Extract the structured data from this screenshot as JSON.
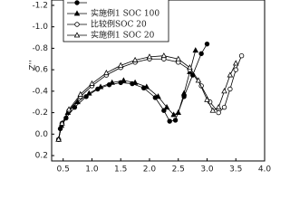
{
  "chart_data": {
    "type": "scatter-line",
    "y_label": "Z''",
    "xlim": [
      0.3,
      4.0
    ],
    "ylim": [
      0.25,
      -1.25
    ],
    "xticks": [
      0.5,
      {
        "value": 1,
        "label": "1.0"
      },
      1.5,
      {
        "value": 2,
        "label": "2.0"
      },
      2.5,
      {
        "value": 3,
        "label": "3.0"
      },
      3.5,
      {
        "value": 4,
        "label": "4.0"
      }
    ],
    "yticks": [
      -1.2,
      {
        "value": -1,
        "label": "-1.0"
      },
      -0.8,
      -0.6,
      -0.4,
      -0.2,
      {
        "value": 0,
        "label": "0.0"
      },
      0.2
    ],
    "series": [
      {
        "name": null,
        "color": "#000",
        "marker": "circle",
        "filled": true,
        "x": [
          0.42,
          0.45,
          0.55,
          0.7,
          0.9,
          1.1,
          1.3,
          1.5,
          1.7,
          1.9,
          2.1,
          2.25,
          2.35,
          2.45,
          2.6,
          2.75,
          2.9,
          3.0
        ],
        "values": [
          0.05,
          -0.05,
          -0.15,
          -0.25,
          -0.35,
          -0.42,
          -0.46,
          -0.48,
          -0.47,
          -0.43,
          -0.34,
          -0.22,
          -0.12,
          -0.13,
          -0.35,
          -0.55,
          -0.75,
          -0.84
        ]
      },
      {
        "name": "实施例1 SOC 100",
        "color": "#000",
        "marker": "triangle",
        "filled": true,
        "x": [
          0.42,
          0.47,
          0.58,
          0.75,
          0.95,
          1.15,
          1.35,
          1.55,
          1.75,
          1.95,
          2.15,
          2.3,
          2.42,
          2.5,
          2.6,
          2.7,
          2.8
        ],
        "values": [
          0.05,
          -0.08,
          -0.2,
          -0.3,
          -0.38,
          -0.44,
          -0.48,
          -0.5,
          -0.48,
          -0.44,
          -0.35,
          -0.25,
          -0.18,
          -0.2,
          -0.38,
          -0.58,
          -0.78
        ]
      },
      {
        "name": "比较例SOC 20",
        "color": "#000",
        "marker": "circle",
        "filled": false,
        "x": [
          0.42,
          0.48,
          0.6,
          0.8,
          1.0,
          1.25,
          1.5,
          1.75,
          2.0,
          2.25,
          2.5,
          2.7,
          2.9,
          3.05,
          3.2,
          3.3,
          3.4,
          3.5,
          3.6
        ],
        "values": [
          0.05,
          -0.1,
          -0.22,
          -0.35,
          -0.45,
          -0.55,
          -0.62,
          -0.67,
          -0.7,
          -0.7,
          -0.67,
          -0.6,
          -0.45,
          -0.3,
          -0.2,
          -0.25,
          -0.42,
          -0.6,
          -0.73
        ]
      },
      {
        "name": "实施例1 SOC 20",
        "color": "#000",
        "marker": "triangle",
        "filled": false,
        "x": [
          0.42,
          0.48,
          0.6,
          0.8,
          1.0,
          1.25,
          1.5,
          1.75,
          2.0,
          2.25,
          2.5,
          2.7,
          2.85,
          3.0,
          3.1,
          3.2,
          3.3,
          3.4,
          3.5
        ],
        "values": [
          0.05,
          -0.1,
          -0.23,
          -0.37,
          -0.47,
          -0.57,
          -0.64,
          -0.69,
          -0.72,
          -0.73,
          -0.7,
          -0.62,
          -0.5,
          -0.32,
          -0.22,
          -0.25,
          -0.4,
          -0.55,
          -0.66
        ]
      }
    ]
  }
}
